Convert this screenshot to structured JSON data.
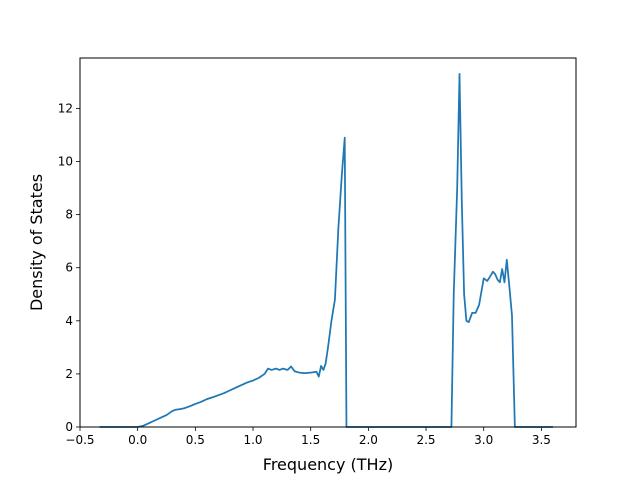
{
  "chart_data": {
    "type": "line",
    "title": "",
    "xlabel": "Frequency (THz)",
    "ylabel": "Density of States",
    "xlim": [
      -0.5,
      3.8
    ],
    "ylim": [
      0,
      13.9
    ],
    "grid": false,
    "legend": "none",
    "x_ticks": [
      -0.5,
      0.0,
      0.5,
      1.0,
      1.5,
      2.0,
      2.5,
      3.0,
      3.5
    ],
    "x_tick_labels": [
      "−0.5",
      "0.0",
      "0.5",
      "1.0",
      "1.5",
      "2.0",
      "2.5",
      "3.0",
      "3.5"
    ],
    "y_ticks": [
      0,
      2,
      4,
      6,
      8,
      10,
      12
    ],
    "y_tick_labels": [
      "0",
      "2",
      "4",
      "6",
      "8",
      "10",
      "12"
    ],
    "line_color": "#1f77b4",
    "series": [
      {
        "x": [
          -0.33,
          0.0,
          0.05,
          0.1,
          0.15,
          0.2,
          0.25,
          0.3,
          0.33,
          0.36,
          0.4,
          0.45,
          0.5,
          0.55,
          0.6,
          0.65,
          0.7,
          0.75,
          0.8,
          0.85,
          0.9,
          0.95,
          1.0,
          1.05,
          1.1,
          1.13,
          1.16,
          1.2,
          1.23,
          1.26,
          1.3,
          1.33,
          1.36,
          1.4,
          1.45,
          1.5,
          1.55,
          1.57,
          1.59,
          1.61,
          1.63,
          1.65,
          1.68,
          1.71,
          1.74,
          1.77,
          1.795,
          1.81,
          1.9,
          2.0,
          2.2,
          2.4,
          2.6,
          2.72,
          2.74,
          2.77,
          2.79,
          2.81,
          2.83,
          2.85,
          2.87,
          2.9,
          2.93,
          2.96,
          3.0,
          3.03,
          3.06,
          3.08,
          3.1,
          3.12,
          3.14,
          3.16,
          3.18,
          3.2,
          3.22,
          3.245,
          3.27,
          3.4,
          3.6
        ],
        "y": [
          0,
          0,
          0.05,
          0.15,
          0.25,
          0.35,
          0.45,
          0.6,
          0.65,
          0.67,
          0.7,
          0.78,
          0.87,
          0.95,
          1.05,
          1.12,
          1.2,
          1.28,
          1.38,
          1.48,
          1.58,
          1.68,
          1.75,
          1.85,
          2.0,
          2.2,
          2.15,
          2.2,
          2.15,
          2.2,
          2.15,
          2.28,
          2.1,
          2.05,
          2.03,
          2.05,
          2.08,
          1.9,
          2.3,
          2.15,
          2.4,
          3.0,
          4.0,
          4.8,
          7.5,
          9.5,
          10.9,
          0,
          0,
          0,
          0,
          0,
          0,
          0,
          5.0,
          9.0,
          13.3,
          8.5,
          5.0,
          4.0,
          3.95,
          4.3,
          4.3,
          4.6,
          5.6,
          5.5,
          5.7,
          5.85,
          5.75,
          5.55,
          5.45,
          5.95,
          5.45,
          6.3,
          5.4,
          4.2,
          0,
          0,
          0
        ]
      }
    ]
  }
}
